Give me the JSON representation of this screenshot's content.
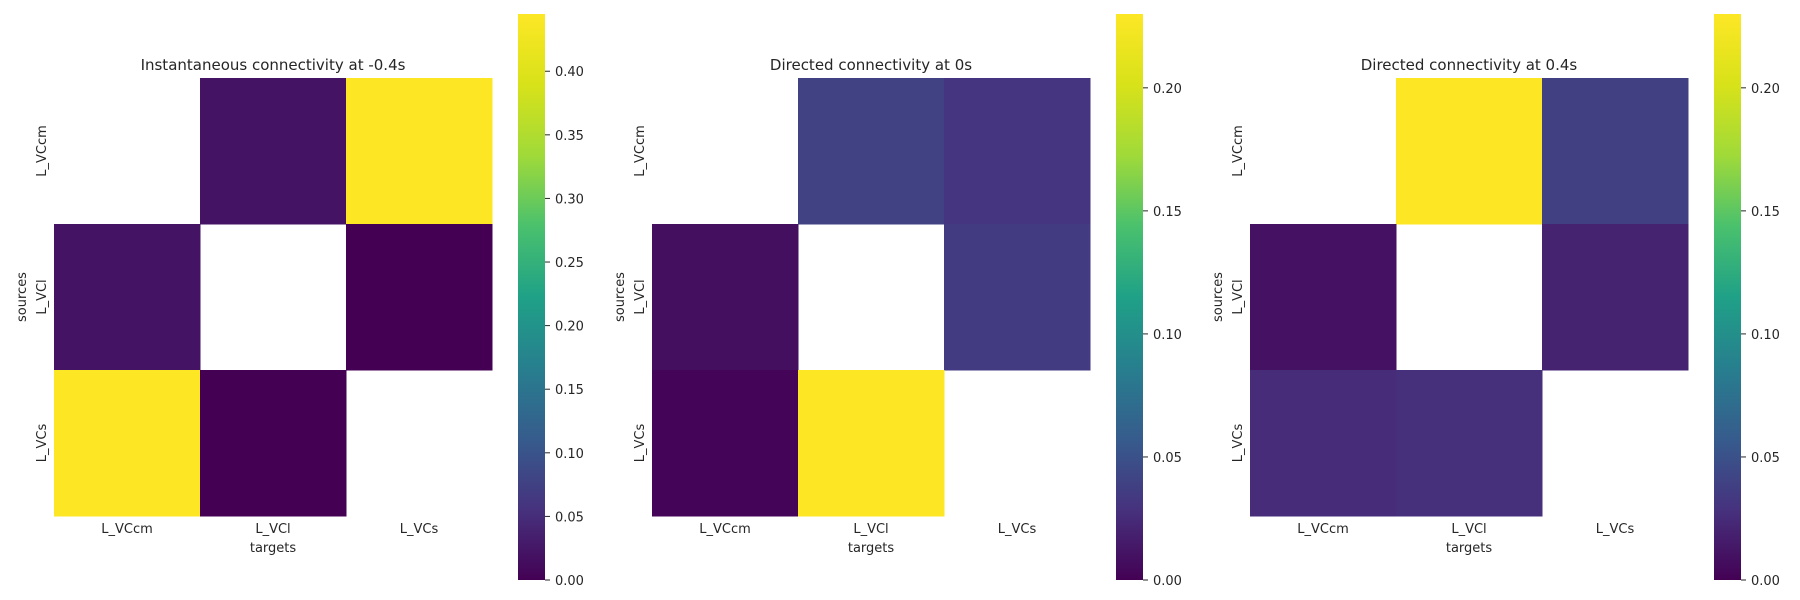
{
  "chart_data": [
    {
      "type": "heatmap",
      "title": "Instantaneous connectivity at -0.4s",
      "xlabel": "targets",
      "ylabel": "sources",
      "x_categories": [
        "L_VCcm",
        "L_VCl",
        "L_VCs"
      ],
      "y_categories": [
        "L_VCcm",
        "L_VCl",
        "L_VCs"
      ],
      "values": [
        [
          null,
          0.02,
          0.445
        ],
        [
          0.02,
          null,
          0.0
        ],
        [
          0.445,
          0.0,
          null
        ]
      ],
      "colorbar": {
        "vmin": 0.0,
        "vmax": 0.445,
        "ticks": [
          "0.00",
          "0.05",
          "0.10",
          "0.15",
          "0.20",
          "0.25",
          "0.30",
          "0.35",
          "0.40"
        ]
      }
    },
    {
      "type": "heatmap",
      "title": "Directed connectivity at 0s",
      "xlabel": "targets",
      "ylabel": "sources",
      "x_categories": [
        "L_VCcm",
        "L_VCl",
        "L_VCs"
      ],
      "y_categories": [
        "L_VCcm",
        "L_VCl",
        "L_VCs"
      ],
      "values": [
        [
          null,
          0.04,
          0.03
        ],
        [
          0.008,
          null,
          0.035
        ],
        [
          0.002,
          0.23,
          null
        ]
      ],
      "colorbar": {
        "vmin": 0.0,
        "vmax": 0.23,
        "ticks": [
          "0.00",
          "0.05",
          "0.10",
          "0.15",
          "0.20"
        ]
      }
    },
    {
      "type": "heatmap",
      "title": "Directed connectivity at 0.4s",
      "xlabel": "targets",
      "ylabel": "sources",
      "x_categories": [
        "L_VCcm",
        "L_VCl",
        "L_VCs"
      ],
      "y_categories": [
        "L_VCcm",
        "L_VCl",
        "L_VCs"
      ],
      "values": [
        [
          null,
          0.23,
          0.038
        ],
        [
          0.01,
          null,
          0.02
        ],
        [
          0.025,
          0.027,
          null
        ]
      ],
      "colorbar": {
        "vmin": 0.0,
        "vmax": 0.23,
        "ticks": [
          "0.00",
          "0.05",
          "0.10",
          "0.15",
          "0.20"
        ]
      }
    }
  ]
}
